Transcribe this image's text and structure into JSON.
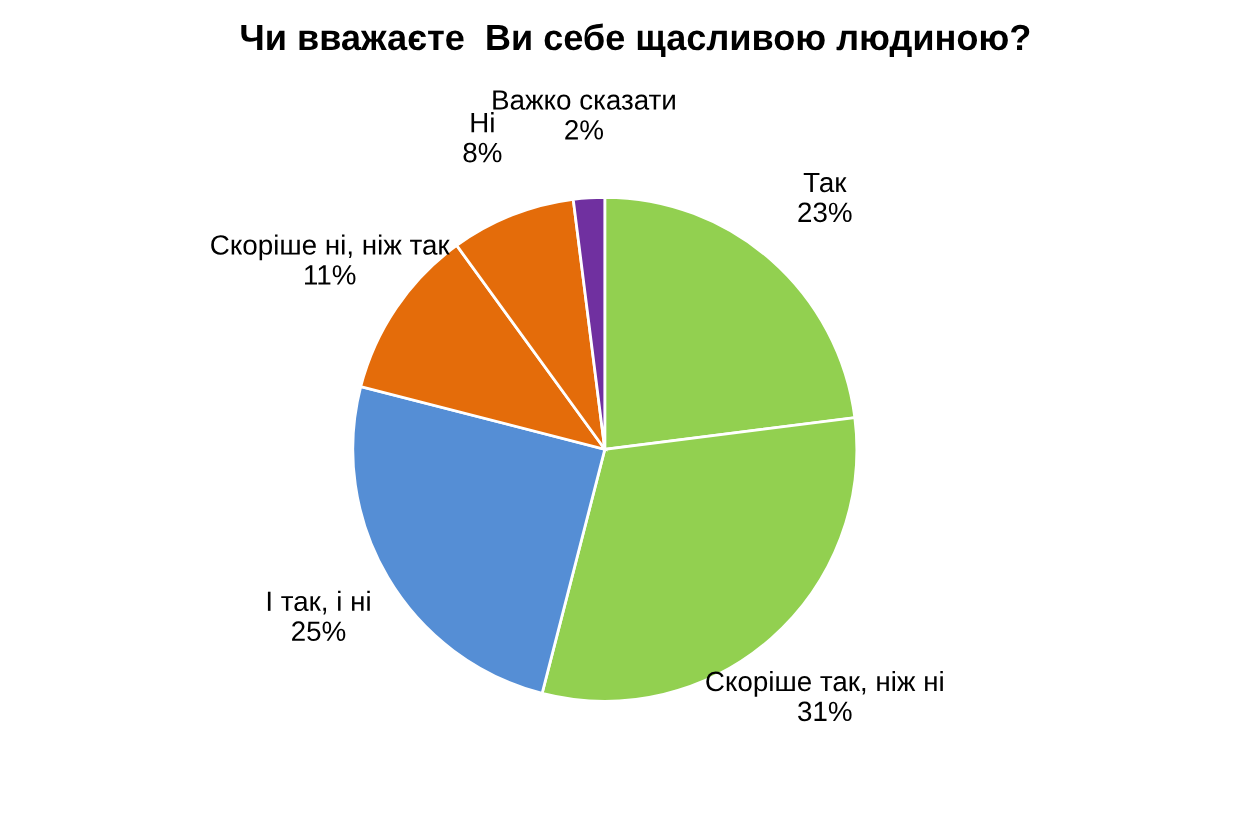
{
  "chart_data": {
    "type": "pie",
    "title": "Чи вважаєте  Ви себе щасливою людиною?",
    "categories": [
      "Так",
      "Скоріше так, ніж ні",
      "І так, і ні",
      "Скоріше ні, ніж так",
      "Ні",
      "Важко сказати"
    ],
    "values": [
      23,
      31,
      25,
      11,
      8,
      2
    ],
    "value_labels": [
      "23%",
      "31%",
      "25%",
      "11%",
      "8%",
      "2%"
    ],
    "colors": [
      "#92d050",
      "#92d050",
      "#558ed5",
      "#e46c0a",
      "#e46c0a",
      "#7030a0"
    ],
    "legend": false
  }
}
